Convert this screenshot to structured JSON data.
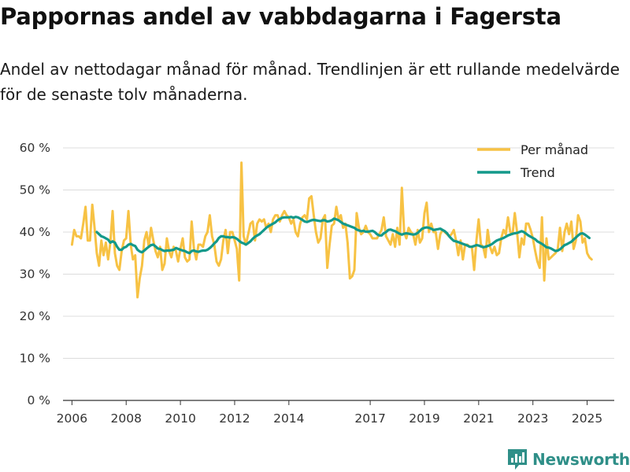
{
  "title": "Pappornas andel av vabbdagarna i Fagersta",
  "subtitle": "Andel av nettodagar månad för månad. Trendlinjen är ett rullande medelvärde för de senaste tolv månaderna.",
  "brand": {
    "name": "Newsworthy"
  },
  "colors": {
    "per_month": "#f7c244",
    "trend": "#13998a",
    "grid": "#dcdcdc",
    "axis": "#333333",
    "brand": "#2f8f88"
  },
  "chart_data": {
    "type": "line",
    "x_start": "2006-01",
    "x_step": "month",
    "ylim": [
      0,
      60
    ],
    "y_ticks": [
      0,
      10,
      20,
      30,
      40,
      50,
      60
    ],
    "y_tick_labels": [
      "0 %",
      "10 %",
      "20 %",
      "30 %",
      "40 %",
      "50 %",
      "60 %"
    ],
    "x_ticks": [
      2006,
      2008,
      2010,
      2012,
      2014,
      2017,
      2019,
      2021,
      2023,
      2025
    ],
    "x_tick_labels": [
      "2006",
      "2008",
      "2010",
      "2012",
      "2014",
      "2017",
      "2019",
      "2021",
      "2023",
      "2025"
    ],
    "grid": true,
    "legend_position": "top-right",
    "series": [
      {
        "name": "Per månad",
        "values": [
          37,
          40.5,
          39,
          39,
          38.5,
          42,
          46,
          38,
          38,
          46.5,
          41,
          35,
          32,
          38,
          34.5,
          37.5,
          33.5,
          37.5,
          45,
          35,
          32,
          31,
          35.5,
          38,
          38.5,
          45,
          37,
          33.5,
          34.5,
          24.5,
          29,
          32,
          38,
          40,
          36.5,
          41,
          38,
          35.5,
          34,
          36.5,
          31,
          32.5,
          38.5,
          35.5,
          34,
          36.5,
          35.5,
          33,
          36,
          38.5,
          34,
          33,
          33.5,
          42.5,
          36,
          33.5,
          37,
          37,
          36.5,
          39,
          40,
          44,
          39,
          37,
          33,
          32,
          33.5,
          38,
          40.5,
          35,
          40,
          40,
          38,
          36,
          28.5,
          56.5,
          39,
          37,
          39.5,
          42,
          42.5,
          38,
          42,
          43,
          42.5,
          43,
          41,
          42,
          40,
          43,
          44,
          44,
          42.5,
          44,
          45,
          44,
          43.5,
          42,
          43,
          40,
          39,
          42,
          43.5,
          44,
          43,
          48,
          48.5,
          44,
          40,
          37.5,
          38.5,
          43,
          44,
          31.5,
          37,
          41.5,
          42,
          46,
          43,
          44,
          41,
          42,
          37.5,
          29,
          29.5,
          31,
          44.5,
          41,
          39.5,
          40,
          41.5,
          40,
          39.5,
          38.5,
          38.5,
          38.5,
          39.5,
          40.5,
          43.5,
          39,
          38,
          37,
          39.5,
          36.5,
          41,
          37,
          50.5,
          40,
          38.5,
          41,
          40,
          39.5,
          37,
          40.5,
          37.5,
          38.5,
          44.5,
          47,
          40,
          42,
          40,
          40,
          36,
          39.5,
          40.5,
          40,
          39.5,
          39,
          39.5,
          40.5,
          38,
          34.5,
          38,
          33.5,
          37,
          37,
          36.5,
          36.5,
          31,
          38,
          43,
          37,
          36.5,
          34,
          40.5,
          36.5,
          35,
          36.5,
          34.5,
          35,
          38.5,
          40.5,
          39.5,
          43.5,
          40,
          39.5,
          44.5,
          40,
          34,
          38.5,
          37,
          42,
          42,
          40.5,
          38.5,
          35.5,
          33,
          31.5,
          43.5,
          28.5,
          38.5,
          33.5,
          34,
          34.5,
          35,
          36,
          41,
          35.5,
          40,
          42,
          39.5,
          42.5,
          36,
          38,
          44,
          42.5,
          37.5,
          38.5,
          35,
          34,
          33.5
        ]
      },
      {
        "name": "Trend",
        "values": [
          null,
          null,
          null,
          null,
          null,
          null,
          null,
          null,
          null,
          null,
          null,
          40,
          39.5,
          39,
          38.8,
          38.5,
          38.2,
          37.5,
          37.8,
          37.5,
          36.5,
          35.8,
          35.8,
          36.3,
          36.5,
          37,
          37.2,
          36.9,
          36.7,
          35.8,
          35.4,
          35.2,
          35.6,
          36.1,
          36.5,
          36.9,
          37,
          36.6,
          36.1,
          36,
          35.7,
          35.5,
          35.6,
          35.6,
          35.7,
          35.8,
          36.2,
          36,
          35.8,
          35.6,
          35.5,
          35.2,
          35,
          35.5,
          35.6,
          35.4,
          35.3,
          35.5,
          35.6,
          35.6,
          35.8,
          36.2,
          36.7,
          37.3,
          37.8,
          38.6,
          39,
          39,
          38.8,
          38.8,
          38.7,
          38.8,
          38.7,
          38.4,
          37.9,
          37.5,
          37.3,
          37,
          37.4,
          37.8,
          38.4,
          38.9,
          39.2,
          39.5,
          40,
          40.5,
          41,
          41.4,
          41.7,
          42,
          42.3,
          42.8,
          43.1,
          43.4,
          43.5,
          43.5,
          43.5,
          43.6,
          43.4,
          43.6,
          43.5,
          43.2,
          42.9,
          42.5,
          42.4,
          42.6,
          42.8,
          42.9,
          42.8,
          42.7,
          42.6,
          42.8,
          42.8,
          42.5,
          42.6,
          42.8,
          43.2,
          43,
          42.8,
          42.4,
          42,
          41.8,
          41.6,
          41.4,
          41.2,
          41,
          40.6,
          40.4,
          40.2,
          40.3,
          40.1,
          40.1,
          40.2,
          40.3,
          40,
          39.5,
          39.2,
          39.2,
          39.7,
          40,
          40.5,
          40.6,
          40.4,
          40.2,
          39.9,
          39.6,
          39.4,
          39.6,
          39.7,
          39.6,
          39.5,
          39.4,
          39.5,
          39.8,
          40.3,
          40.8,
          41,
          41.1,
          41,
          40.8,
          40.5,
          40.6,
          40.7,
          40.8,
          40.5,
          40.2,
          39.7,
          39,
          38.4,
          37.9,
          37.8,
          37.6,
          37.4,
          37.2,
          37,
          36.8,
          36.5,
          36.5,
          36.7,
          36.9,
          36.8,
          36.6,
          36.4,
          36.5,
          36.7,
          36.9,
          37.2,
          37.6,
          38,
          38.2,
          38.4,
          38.6,
          38.9,
          39.2,
          39.4,
          39.6,
          39.7,
          39.8,
          40,
          40.2,
          40,
          39.6,
          39.2,
          38.9,
          38.6,
          38.3,
          37.8,
          37.5,
          37.2,
          36.8,
          36.4,
          36.3,
          36.1,
          35.8,
          35.5,
          35.6,
          35.9,
          36.4,
          36.9,
          37.1,
          37.4,
          37.7,
          38.2,
          38.7,
          39.2,
          39.6,
          39.7,
          39.4,
          39,
          38.6
        ]
      }
    ]
  }
}
